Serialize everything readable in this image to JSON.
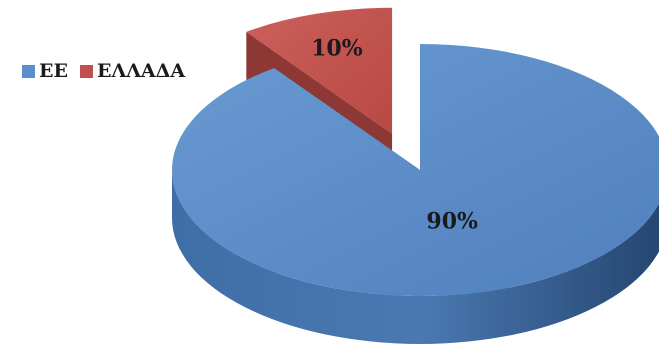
{
  "chart_data": {
    "type": "pie",
    "title": "",
    "categories": [
      "ΕΕ",
      "ΕΛΛΑΔΑ"
    ],
    "values": [
      90,
      10
    ],
    "data_labels": [
      "90%",
      "10%"
    ],
    "colors": [
      "#5b8fc9",
      "#c0504d"
    ],
    "exploded": [
      false,
      true
    ],
    "legend_position": "top-left",
    "three_d": true
  }
}
